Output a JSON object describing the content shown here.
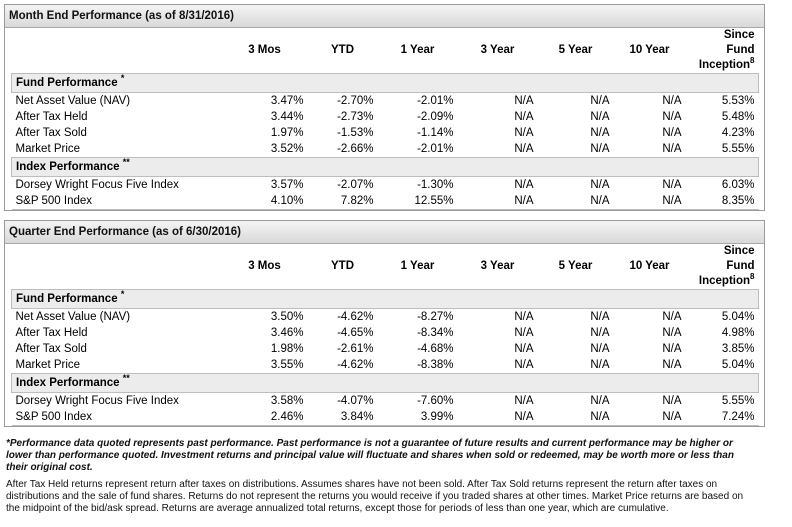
{
  "columns": [
    "3 Mos",
    "YTD",
    "1 Year",
    "3 Year",
    "5 Year",
    "10 Year"
  ],
  "since_inception": {
    "line1": "Since",
    "line2": "Fund",
    "line3": "Inception",
    "sup": "8"
  },
  "month_end": {
    "title": "Month End Performance (as of 8/31/2016)",
    "fund_section": {
      "label": "Fund Performance",
      "sup": "*"
    },
    "fund_rows": [
      {
        "label": "Net Asset Value (NAV)",
        "values": [
          "3.47%",
          "-2.70%",
          "-2.01%",
          "N/A",
          "N/A",
          "N/A",
          "5.53%"
        ]
      },
      {
        "label": "After Tax Held",
        "values": [
          "3.44%",
          "-2.73%",
          "-2.09%",
          "N/A",
          "N/A",
          "N/A",
          "5.48%"
        ]
      },
      {
        "label": "After Tax Sold",
        "values": [
          "1.97%",
          "-1.53%",
          "-1.14%",
          "N/A",
          "N/A",
          "N/A",
          "4.23%"
        ]
      },
      {
        "label": "Market Price",
        "values": [
          "3.52%",
          "-2.66%",
          "-2.01%",
          "N/A",
          "N/A",
          "N/A",
          "5.55%"
        ]
      }
    ],
    "index_section": {
      "label": "Index Performance",
      "sup": "**"
    },
    "index_rows": [
      {
        "label": "Dorsey Wright Focus Five Index",
        "values": [
          "3.57%",
          "-2.07%",
          "-1.30%",
          "N/A",
          "N/A",
          "N/A",
          "6.03%"
        ]
      },
      {
        "label": "S&P 500 Index",
        "values": [
          "4.10%",
          "7.82%",
          "12.55%",
          "N/A",
          "N/A",
          "N/A",
          "8.35%"
        ]
      }
    ]
  },
  "quarter_end": {
    "title": "Quarter End Performance (as of 6/30/2016)",
    "fund_section": {
      "label": "Fund Performance",
      "sup": "*"
    },
    "fund_rows": [
      {
        "label": "Net Asset Value (NAV)",
        "values": [
          "3.50%",
          "-4.62%",
          "-8.27%",
          "N/A",
          "N/A",
          "N/A",
          "5.04%"
        ]
      },
      {
        "label": "After Tax Held",
        "values": [
          "3.46%",
          "-4.65%",
          "-8.34%",
          "N/A",
          "N/A",
          "N/A",
          "4.98%"
        ]
      },
      {
        "label": "After Tax Sold",
        "values": [
          "1.98%",
          "-2.61%",
          "-4.68%",
          "N/A",
          "N/A",
          "N/A",
          "3.85%"
        ]
      },
      {
        "label": "Market Price",
        "values": [
          "3.55%",
          "-4.62%",
          "-8.38%",
          "N/A",
          "N/A",
          "N/A",
          "5.04%"
        ]
      }
    ],
    "index_section": {
      "label": "Index Performance",
      "sup": "**"
    },
    "index_rows": [
      {
        "label": "Dorsey Wright Focus Five Index",
        "values": [
          "3.58%",
          "-4.07%",
          "-7.60%",
          "N/A",
          "N/A",
          "N/A",
          "5.55%"
        ]
      },
      {
        "label": "S&P 500 Index",
        "values": [
          "2.46%",
          "3.84%",
          "3.99%",
          "N/A",
          "N/A",
          "N/A",
          "7.24%"
        ]
      }
    ]
  },
  "notes": {
    "disclaimer": "*Performance data quoted represents past performance. Past performance is not a guarantee of future results and current performance may be higher or lower than performance quoted. Investment returns and principal value will fluctuate and shares when sold or redeemed, may be worth more or less than their original cost.",
    "explanation": "After Tax Held returns represent return after taxes on distributions. Assumes shares have not been sold. After Tax Sold returns represent the return after taxes on distributions and the sale of fund shares. Returns do not represent the returns you would receive if you traded shares at other times. Market Price returns are based on the midpoint of the bid/ask spread. Returns are average annualized total returns, except those for periods of less than one year, which are cumulative."
  }
}
